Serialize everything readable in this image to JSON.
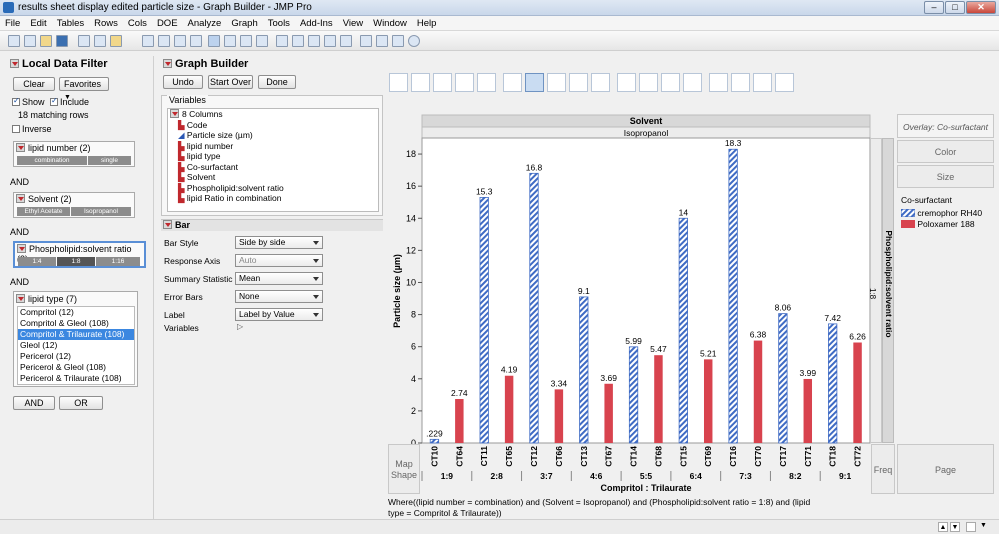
{
  "window": {
    "title": "results sheet display edited particle size - Graph Builder - JMP Pro"
  },
  "menu": [
    "File",
    "Edit",
    "Tables",
    "Rows",
    "Cols",
    "DOE",
    "Analyze",
    "Graph",
    "Tools",
    "Add-Ins",
    "View",
    "Window",
    "Help"
  ],
  "local_filter": {
    "title": "Local Data Filter",
    "clear": "Clear",
    "favorites": "Favorites",
    "show": "Show",
    "include": "Include",
    "matching": "18 matching rows",
    "inverse": "Inverse",
    "and": "AND",
    "or": "OR",
    "lipid_number": {
      "label": "lipid number (2)",
      "options": [
        "combination",
        "single"
      ]
    },
    "solvent": {
      "label": "Solvent (2)",
      "options": [
        "Ethyl Acetate",
        "Isopropanol"
      ]
    },
    "ratio": {
      "label": "Phospholipid:solvent ratio (3)",
      "options": [
        "1:4",
        "1:8",
        "1:16"
      ]
    },
    "lipid_type": {
      "label": "lipid type (7)",
      "items": [
        "Compritol (12)",
        "Compritol & Gleol (108)",
        "Compritol & Trilaurate (108)",
        "Gleol (12)",
        "Pericerol (12)",
        "Pericerol & Gleol (108)",
        "Pericerol & Trilaurate (108)"
      ],
      "selected": 2
    }
  },
  "graph_builder": {
    "title": "Graph Builder",
    "undo": "Undo",
    "start_over": "Start Over",
    "done": "Done",
    "variables_label": "Variables",
    "columns_label": "8 Columns",
    "columns": [
      "Code",
      "Particle size (µm)",
      "lipid number",
      "lipid type",
      "Co-surfactant",
      "Solvent",
      "Phospholipid:solvent ratio",
      "lipid Ratio in combination"
    ],
    "bar_section": "Bar",
    "bar_props": [
      {
        "label": "Bar Style",
        "value": "Side by side",
        "disabled": false
      },
      {
        "label": "Response Axis",
        "value": "Auto",
        "disabled": true
      },
      {
        "label": "Summary Statistic",
        "value": "Mean",
        "disabled": false
      },
      {
        "label": "Error Bars",
        "value": "None",
        "disabled": false
      },
      {
        "label": "Label",
        "value": "Label by Value",
        "disabled": false
      }
    ],
    "variables_row": "Variables"
  },
  "zones": {
    "overlay": "Overlay: Co-surfactant",
    "color": "Color",
    "size": "Size",
    "map_shape": "Map Shape",
    "freq": "Freq",
    "page": "Page",
    "wrap": "Phospholipid:solvent ratio",
    "wrap_value": "1:8"
  },
  "legend": {
    "title": "Co-surfactant",
    "items": [
      {
        "name": "cremophor RH40",
        "style": "hatch",
        "color": "#3f6bc4"
      },
      {
        "name": "Poloxamer 188",
        "style": "solid",
        "color": "#d8434e"
      }
    ]
  },
  "where_text": "Where((lipid number = combination) and (Solvent = Isopropanol) and (Phospholipid:solvent ratio = 1:8) and (lipid type = Compritol & Trilaurate))",
  "chart_data": {
    "type": "bar",
    "group_title": "Solvent",
    "group_value": "Isopropanol",
    "ylabel": "Particle size (µm)",
    "xlabel": "Compritol : Trilaurate",
    "ylim": [
      0,
      19
    ],
    "yticks": [
      0,
      2,
      4,
      6,
      8,
      10,
      12,
      14,
      16,
      18
    ],
    "categories": [
      "CT10",
      "CT64",
      "CT11",
      "CT65",
      "CT12",
      "CT66",
      "CT13",
      "CT67",
      "CT14",
      "CT68",
      "CT15",
      "CT69",
      "CT16",
      "CT70",
      "CT17",
      "CT71",
      "CT18",
      "CT72"
    ],
    "series_of_category": [
      "cremophor RH40",
      "Poloxamer 188",
      "cremophor RH40",
      "Poloxamer 188",
      "cremophor RH40",
      "Poloxamer 188",
      "cremophor RH40",
      "Poloxamer 188",
      "cremophor RH40",
      "Poloxamer 188",
      "cremophor RH40",
      "Poloxamer 188",
      "cremophor RH40",
      "Poloxamer 188",
      "cremophor RH40",
      "Poloxamer 188",
      "cremophor RH40",
      "Poloxamer 188"
    ],
    "values": [
      0.229,
      2.74,
      15.3,
      4.19,
      16.8,
      3.34,
      9.1,
      3.69,
      5.99,
      5.47,
      14,
      5.21,
      18.3,
      6.38,
      8.06,
      3.99,
      7.42,
      6.26
    ],
    "value_labels": [
      ".229",
      "2.74",
      "15.3",
      "4.19",
      "16.8",
      "3.34",
      "9.1",
      "3.69",
      "5.99",
      "5.47",
      "14",
      "5.21",
      "18.3",
      "6.38",
      "8.06",
      "3.99",
      "7.42",
      "6.26"
    ],
    "groups": [
      "1:9",
      "2:8",
      "3:7",
      "4:6",
      "5:5",
      "6:4",
      "7:3",
      "8:2",
      "9:1"
    ],
    "grid": false,
    "legend": "right"
  }
}
